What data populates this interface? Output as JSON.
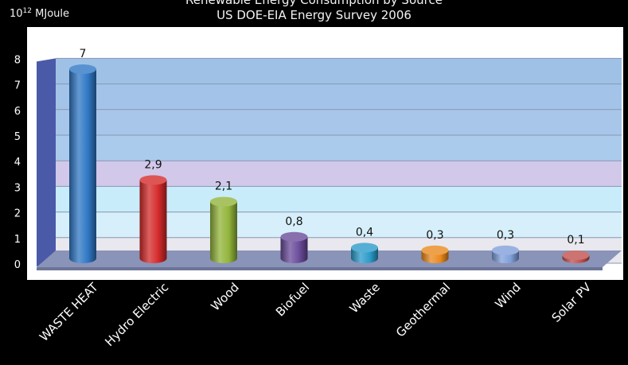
{
  "header": {
    "title": "Renewable Energy Consumption by Source",
    "subtitle": "US DOE-EIA Energy Survey 2006",
    "unit_base": "10",
    "unit_exp": "12",
    "unit_label": "MJoule"
  },
  "chart_data": {
    "type": "bar",
    "title": "Renewable Energy Consumption by Source",
    "subtitle": "US DOE-EIA Energy Survey 2006",
    "ylabel": "10^12 MJoule",
    "xlabel": "",
    "ylim": [
      0,
      8
    ],
    "yticks": [
      "0",
      "1",
      "2",
      "3",
      "4",
      "5",
      "6",
      "7",
      "8"
    ],
    "grid": true,
    "categories": [
      "WASTE HEAT",
      "Hydro Electric",
      "Wood",
      "Biofuel",
      "Waste",
      "Geothermal",
      "Wind",
      "Solar PV"
    ],
    "values": [
      7,
      2.9,
      2.1,
      0.8,
      0.4,
      0.3,
      0.3,
      0.1
    ],
    "value_labels": [
      "7",
      "2,9",
      "2,1",
      "0,8",
      "0,4",
      "0,3",
      "0,3",
      "0,1"
    ],
    "colors": [
      "#2f77c4",
      "#d42a2a",
      "#92b43a",
      "#6a4b9a",
      "#2b9bc9",
      "#ea8a1e",
      "#7f9fd9",
      "#c0504d"
    ]
  }
}
